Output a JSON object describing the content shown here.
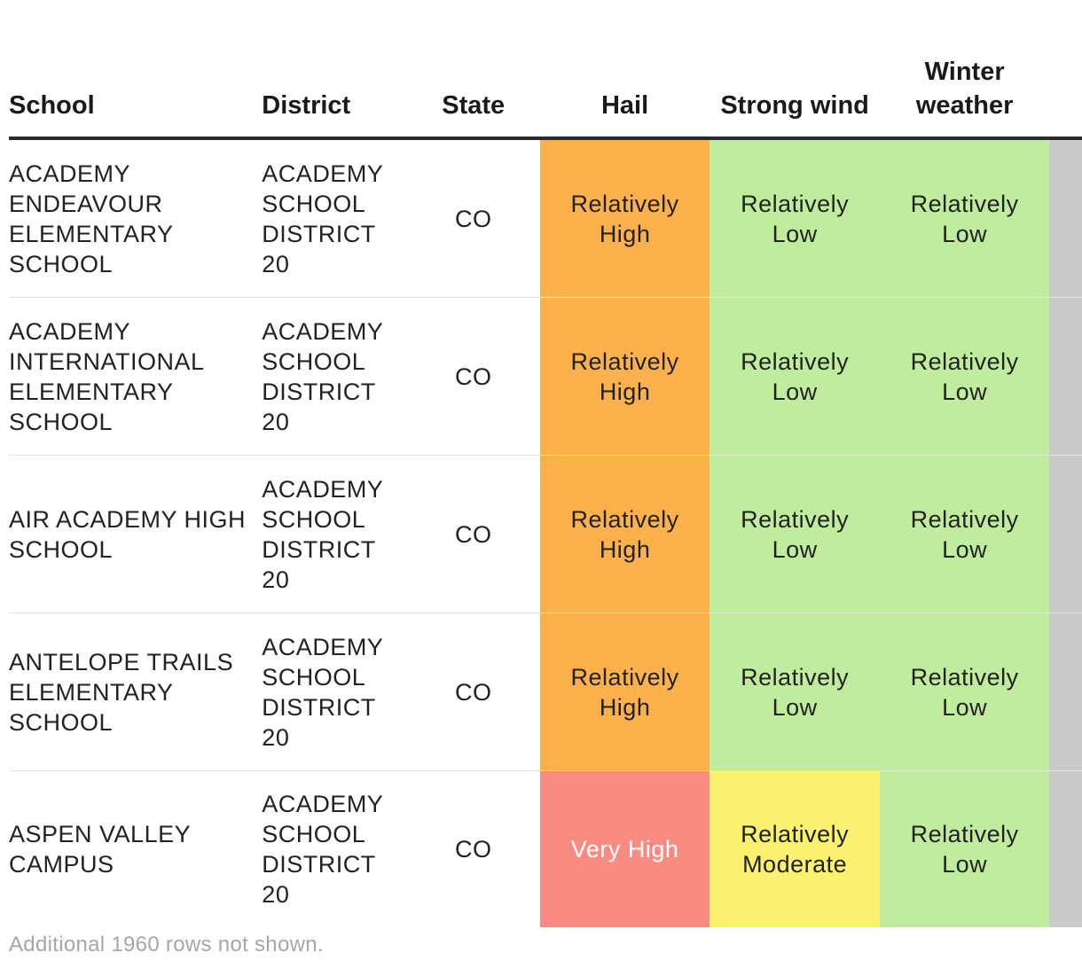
{
  "colors": {
    "relatively_high": "#fdb14d",
    "relatively_low": "#c0ed9d",
    "very_high": "#f98b82",
    "relatively_moderate": "#fbf170",
    "cut_off_column": "#cacaca"
  },
  "chart_data": {
    "type": "table",
    "columns": [
      "School",
      "District",
      "State",
      "Hail",
      "Strong wind",
      "Winter weather"
    ],
    "rows": [
      [
        "ACADEMY ENDEAVOUR ELEMENTARY SCHOOL",
        "ACADEMY SCHOOL DISTRICT 20",
        "CO",
        "Relatively High",
        "Relatively Low",
        "Relatively Low"
      ],
      [
        "ACADEMY INTERNATIONAL ELEMENTARY SCHOOL",
        "ACADEMY SCHOOL DISTRICT 20",
        "CO",
        "Relatively High",
        "Relatively Low",
        "Relatively Low"
      ],
      [
        "AIR ACADEMY HIGH SCHOOL",
        "ACADEMY SCHOOL DISTRICT 20",
        "CO",
        "Relatively High",
        "Relatively Low",
        "Relatively Low"
      ],
      [
        "ANTELOPE TRAILS ELEMENTARY SCHOOL",
        "ACADEMY SCHOOL DISTRICT 20",
        "CO",
        "Relatively High",
        "Relatively Low",
        "Relatively Low"
      ],
      [
        "ASPEN VALLEY CAMPUS",
        "ACADEMY SCHOOL DISTRICT 20",
        "CO",
        "Very High",
        "Relatively Moderate",
        "Relatively Low"
      ]
    ],
    "footnote": "Additional 1960 rows not shown."
  }
}
